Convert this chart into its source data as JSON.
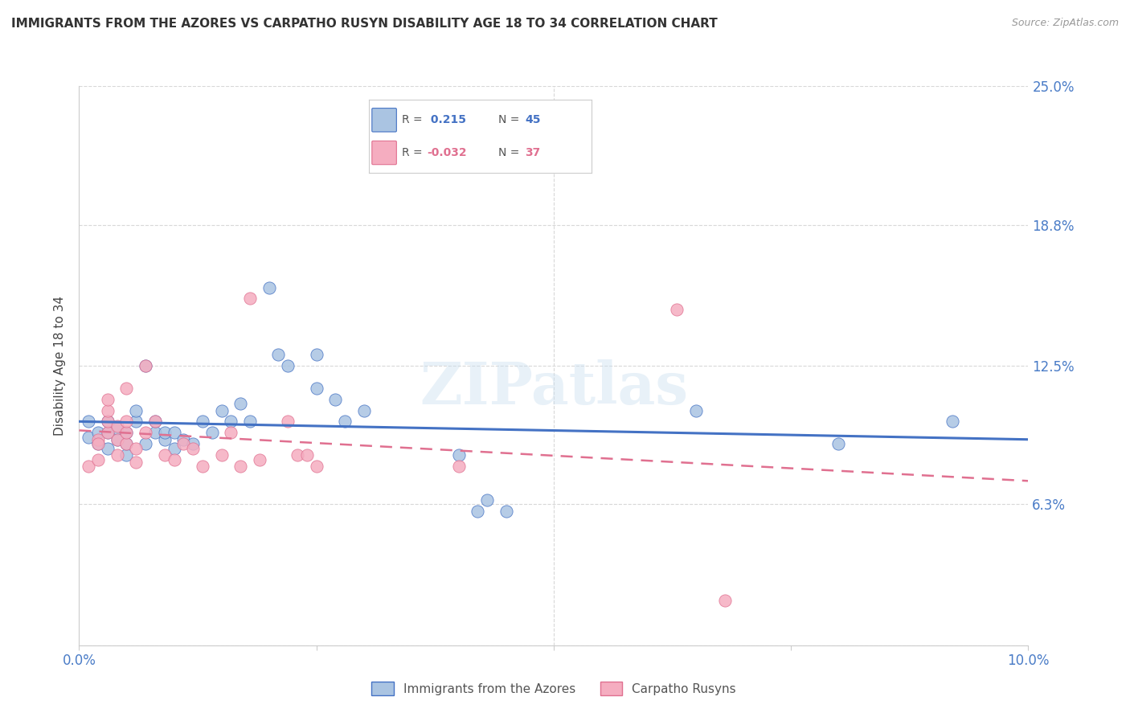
{
  "title": "IMMIGRANTS FROM THE AZORES VS CARPATHO RUSYN DISABILITY AGE 18 TO 34 CORRELATION CHART",
  "source": "Source: ZipAtlas.com",
  "ylabel": "Disability Age 18 to 34",
  "xlim": [
    0,
    0.1
  ],
  "ylim": [
    0,
    0.25
  ],
  "legend_r1": " 0.215",
  "legend_n1": "45",
  "legend_r2": "-0.032",
  "legend_n2": "37",
  "color_blue": "#aac4e2",
  "color_pink": "#f5adc0",
  "line_blue": "#4472c4",
  "line_pink": "#e07090",
  "watermark": "ZIPatlas",
  "blue_points": [
    [
      0.001,
      0.093
    ],
    [
      0.001,
      0.1
    ],
    [
      0.002,
      0.09
    ],
    [
      0.002,
      0.095
    ],
    [
      0.003,
      0.088
    ],
    [
      0.003,
      0.095
    ],
    [
      0.003,
      0.1
    ],
    [
      0.004,
      0.092
    ],
    [
      0.004,
      0.097
    ],
    [
      0.005,
      0.085
    ],
    [
      0.005,
      0.09
    ],
    [
      0.005,
      0.095
    ],
    [
      0.006,
      0.1
    ],
    [
      0.006,
      0.105
    ],
    [
      0.007,
      0.09
    ],
    [
      0.007,
      0.125
    ],
    [
      0.008,
      0.095
    ],
    [
      0.008,
      0.1
    ],
    [
      0.009,
      0.092
    ],
    [
      0.009,
      0.095
    ],
    [
      0.01,
      0.088
    ],
    [
      0.01,
      0.095
    ],
    [
      0.011,
      0.092
    ],
    [
      0.012,
      0.09
    ],
    [
      0.013,
      0.1
    ],
    [
      0.014,
      0.095
    ],
    [
      0.015,
      0.105
    ],
    [
      0.016,
      0.1
    ],
    [
      0.017,
      0.108
    ],
    [
      0.018,
      0.1
    ],
    [
      0.02,
      0.16
    ],
    [
      0.021,
      0.13
    ],
    [
      0.022,
      0.125
    ],
    [
      0.025,
      0.115
    ],
    [
      0.025,
      0.13
    ],
    [
      0.027,
      0.11
    ],
    [
      0.028,
      0.1
    ],
    [
      0.03,
      0.105
    ],
    [
      0.04,
      0.085
    ],
    [
      0.042,
      0.06
    ],
    [
      0.043,
      0.065
    ],
    [
      0.045,
      0.06
    ],
    [
      0.065,
      0.105
    ],
    [
      0.08,
      0.09
    ],
    [
      0.092,
      0.1
    ]
  ],
  "pink_points": [
    [
      0.001,
      0.08
    ],
    [
      0.002,
      0.092
    ],
    [
      0.002,
      0.083
    ],
    [
      0.002,
      0.09
    ],
    [
      0.003,
      0.095
    ],
    [
      0.003,
      0.1
    ],
    [
      0.003,
      0.105
    ],
    [
      0.003,
      0.11
    ],
    [
      0.004,
      0.092
    ],
    [
      0.004,
      0.098
    ],
    [
      0.004,
      0.085
    ],
    [
      0.005,
      0.09
    ],
    [
      0.005,
      0.095
    ],
    [
      0.005,
      0.1
    ],
    [
      0.005,
      0.115
    ],
    [
      0.006,
      0.082
    ],
    [
      0.006,
      0.088
    ],
    [
      0.007,
      0.095
    ],
    [
      0.007,
      0.125
    ],
    [
      0.008,
      0.1
    ],
    [
      0.009,
      0.085
    ],
    [
      0.01,
      0.083
    ],
    [
      0.011,
      0.09
    ],
    [
      0.012,
      0.088
    ],
    [
      0.013,
      0.08
    ],
    [
      0.015,
      0.085
    ],
    [
      0.016,
      0.095
    ],
    [
      0.017,
      0.08
    ],
    [
      0.018,
      0.155
    ],
    [
      0.019,
      0.083
    ],
    [
      0.022,
      0.1
    ],
    [
      0.023,
      0.085
    ],
    [
      0.024,
      0.085
    ],
    [
      0.025,
      0.08
    ],
    [
      0.04,
      0.08
    ],
    [
      0.063,
      0.15
    ],
    [
      0.068,
      0.02
    ]
  ],
  "grid_yticks": [
    0.0,
    0.063,
    0.125,
    0.188,
    0.25
  ],
  "right_yticks": [
    0.063,
    0.125,
    0.188,
    0.25
  ],
  "right_ytick_labels": [
    "6.3%",
    "12.5%",
    "18.8%",
    "25.0%"
  ],
  "xticks": [
    0.0,
    0.025,
    0.05,
    0.075,
    0.1
  ],
  "xtick_labels": [
    "0.0%",
    "",
    "",
    "",
    "10.0%"
  ]
}
